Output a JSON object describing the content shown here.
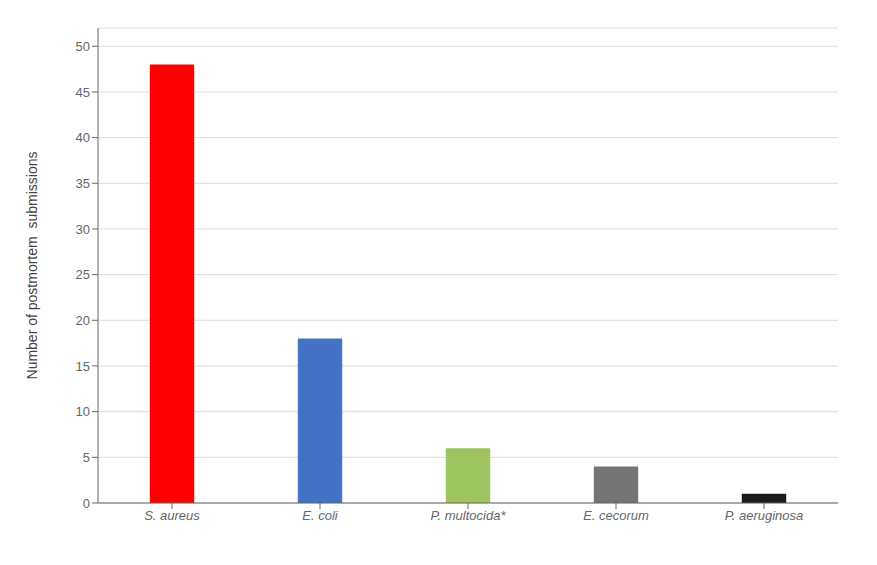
{
  "chart_data": {
    "type": "bar",
    "categories": [
      "S. aureus",
      "E. coli",
      "P. multocida*",
      "E. cecorum",
      "P. aeruginosa"
    ],
    "values": [
      48,
      18,
      6,
      4,
      1
    ],
    "colors": [
      "#ff0000",
      "#4472c4",
      "#9dc45f",
      "#757575",
      "#1a1a1a"
    ],
    "ylabel": "Number of postmortem  submissions",
    "ylim": [
      0,
      52
    ],
    "yticks": [
      0,
      5,
      10,
      15,
      20,
      25,
      30,
      35,
      40,
      45,
      50
    ],
    "grid": true
  }
}
